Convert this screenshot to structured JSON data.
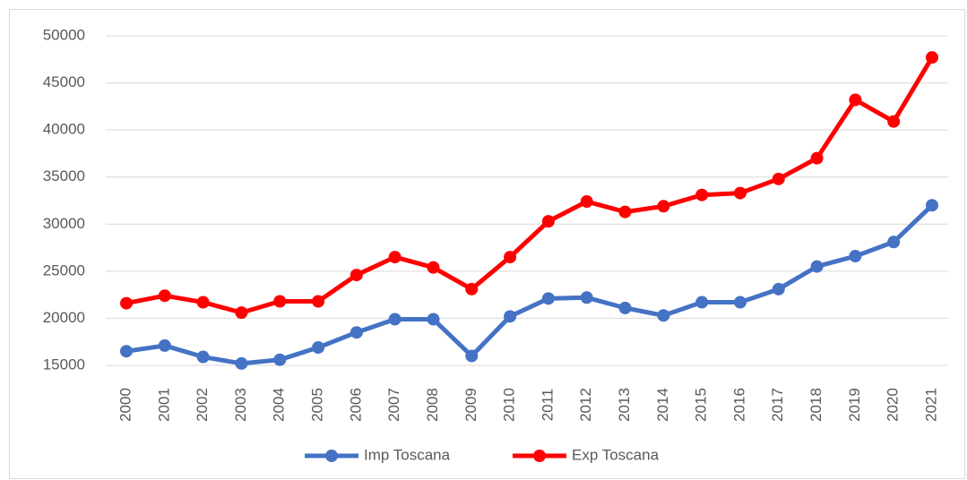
{
  "chart_data": {
    "type": "line",
    "categories": [
      "2000",
      "2001",
      "2002",
      "2003",
      "2004",
      "2005",
      "2006",
      "2007",
      "2008",
      "2009",
      "2010",
      "2011",
      "2012",
      "2013",
      "2014",
      "2015",
      "2016",
      "2017",
      "2018",
      "2019",
      "2020",
      "2021"
    ],
    "series": [
      {
        "name": "Imp Toscana",
        "color": "#4472c4",
        "values": [
          16500,
          17100,
          15900,
          15200,
          15600,
          16900,
          18500,
          19900,
          19900,
          16000,
          20200,
          22100,
          22200,
          21100,
          20300,
          21700,
          21700,
          23100,
          25500,
          26600,
          28100,
          32000
        ]
      },
      {
        "name": "Exp Toscana",
        "color": "#ff0000",
        "values": [
          21600,
          22400,
          21700,
          20600,
          21800,
          21800,
          24600,
          26500,
          25400,
          23100,
          26500,
          30300,
          32400,
          31300,
          31900,
          33100,
          33300,
          34800,
          37000,
          43200,
          40900,
          47700
        ]
      }
    ],
    "ylim": [
      15000,
      50000
    ],
    "yticks": [
      15000,
      20000,
      25000,
      30000,
      35000,
      40000,
      45000,
      50000
    ],
    "grid": true,
    "legend": "bottom"
  }
}
